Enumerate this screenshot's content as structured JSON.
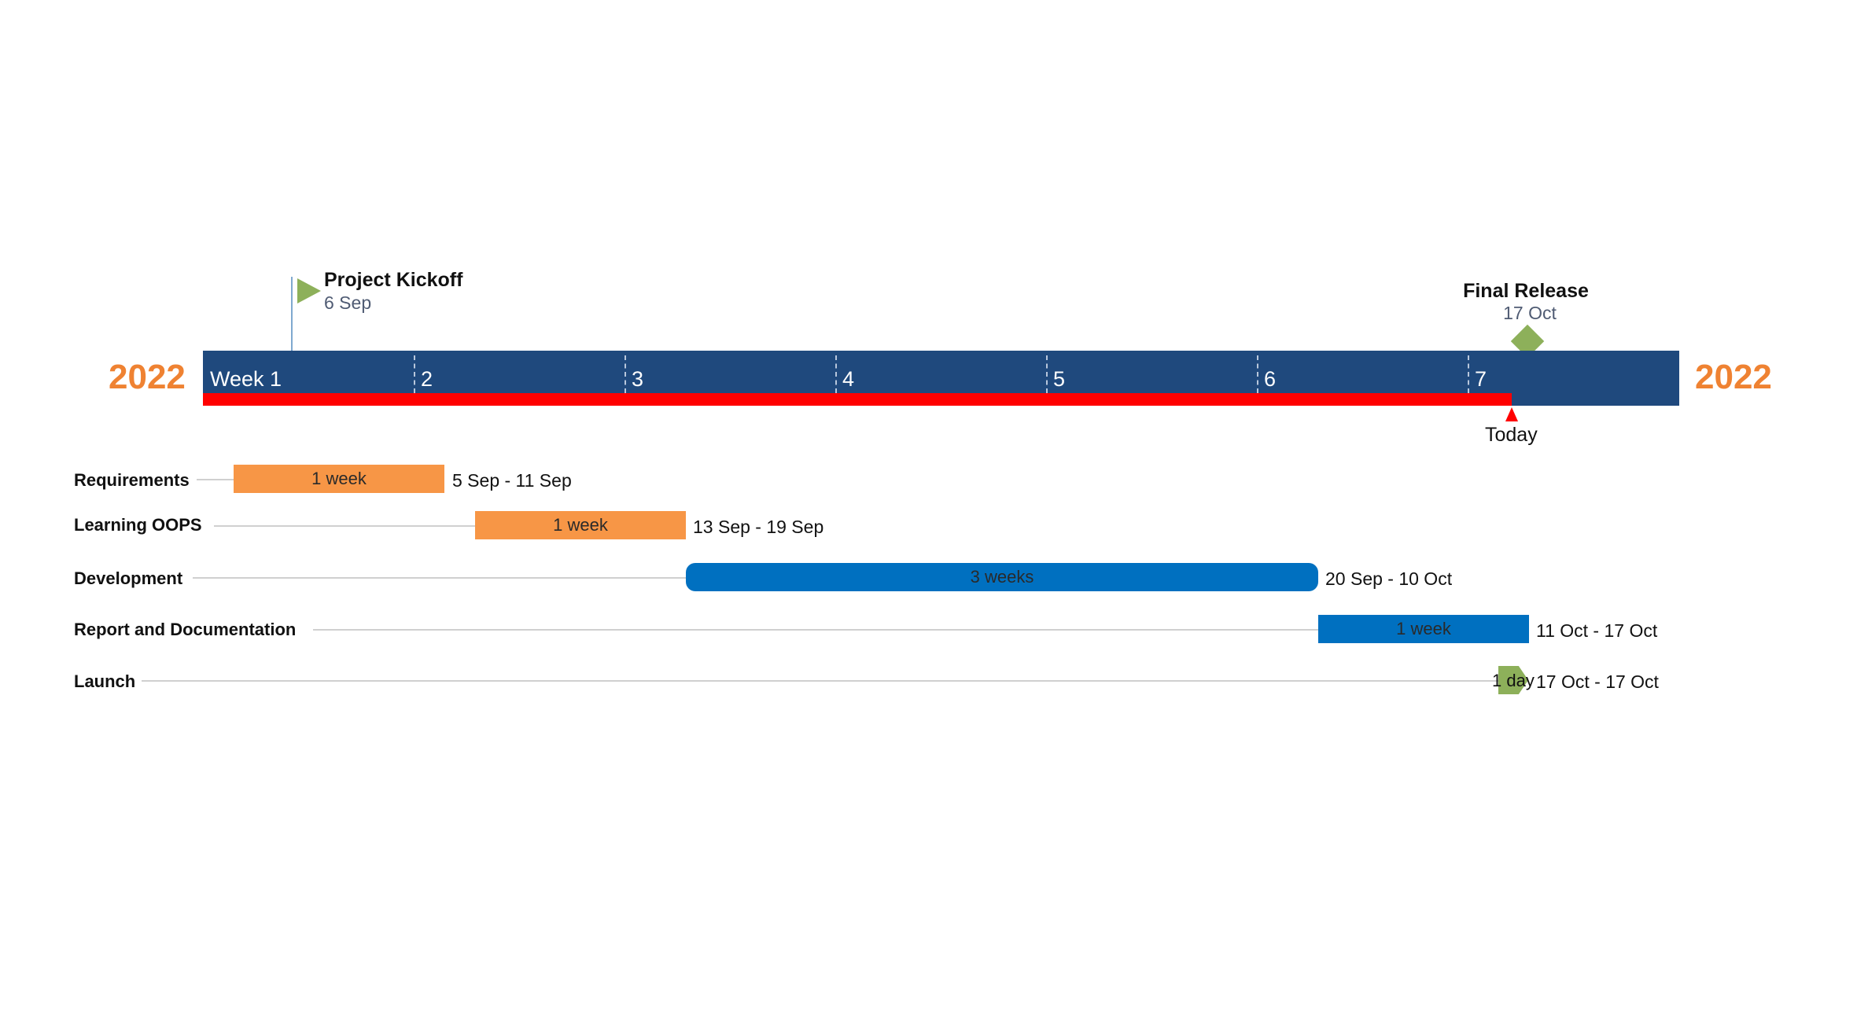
{
  "year": "2022",
  "milestones": [
    {
      "title": "Project Kickoff",
      "date": "6 Sep",
      "marker": "flag",
      "color": "#8db05a"
    },
    {
      "title": "Final Release",
      "date": "17 Oct",
      "marker": "diamond",
      "color": "#8db05a"
    }
  ],
  "weeks": [
    "Week 1",
    "2",
    "3",
    "4",
    "5",
    "6",
    "7"
  ],
  "today_label": "Today",
  "colors": {
    "band": "#1f497d",
    "progress": "#ff0000",
    "year": "#ef8232",
    "phase_orange": "#f79646",
    "phase_blue": "#0070c0",
    "milestone_green": "#8db05a"
  },
  "tasks": [
    {
      "name": "Requirements",
      "duration": "1 week",
      "range": "5 Sep - 11 Sep",
      "color": "#f79646"
    },
    {
      "name": "Learning OOPS",
      "duration": "1 week",
      "range": "13 Sep - 19 Sep",
      "color": "#f79646"
    },
    {
      "name": "Development",
      "duration": "3 weeks",
      "range": "20 Sep - 10 Oct",
      "color": "#0070c0"
    },
    {
      "name": "Report and Documentation",
      "duration": "1 week",
      "range": "11 Oct - 17 Oct",
      "color": "#0070c0"
    },
    {
      "name": "Launch",
      "duration": "1 day",
      "range": "17 Oct - 17 Oct",
      "color": "#8db05a"
    }
  ]
}
